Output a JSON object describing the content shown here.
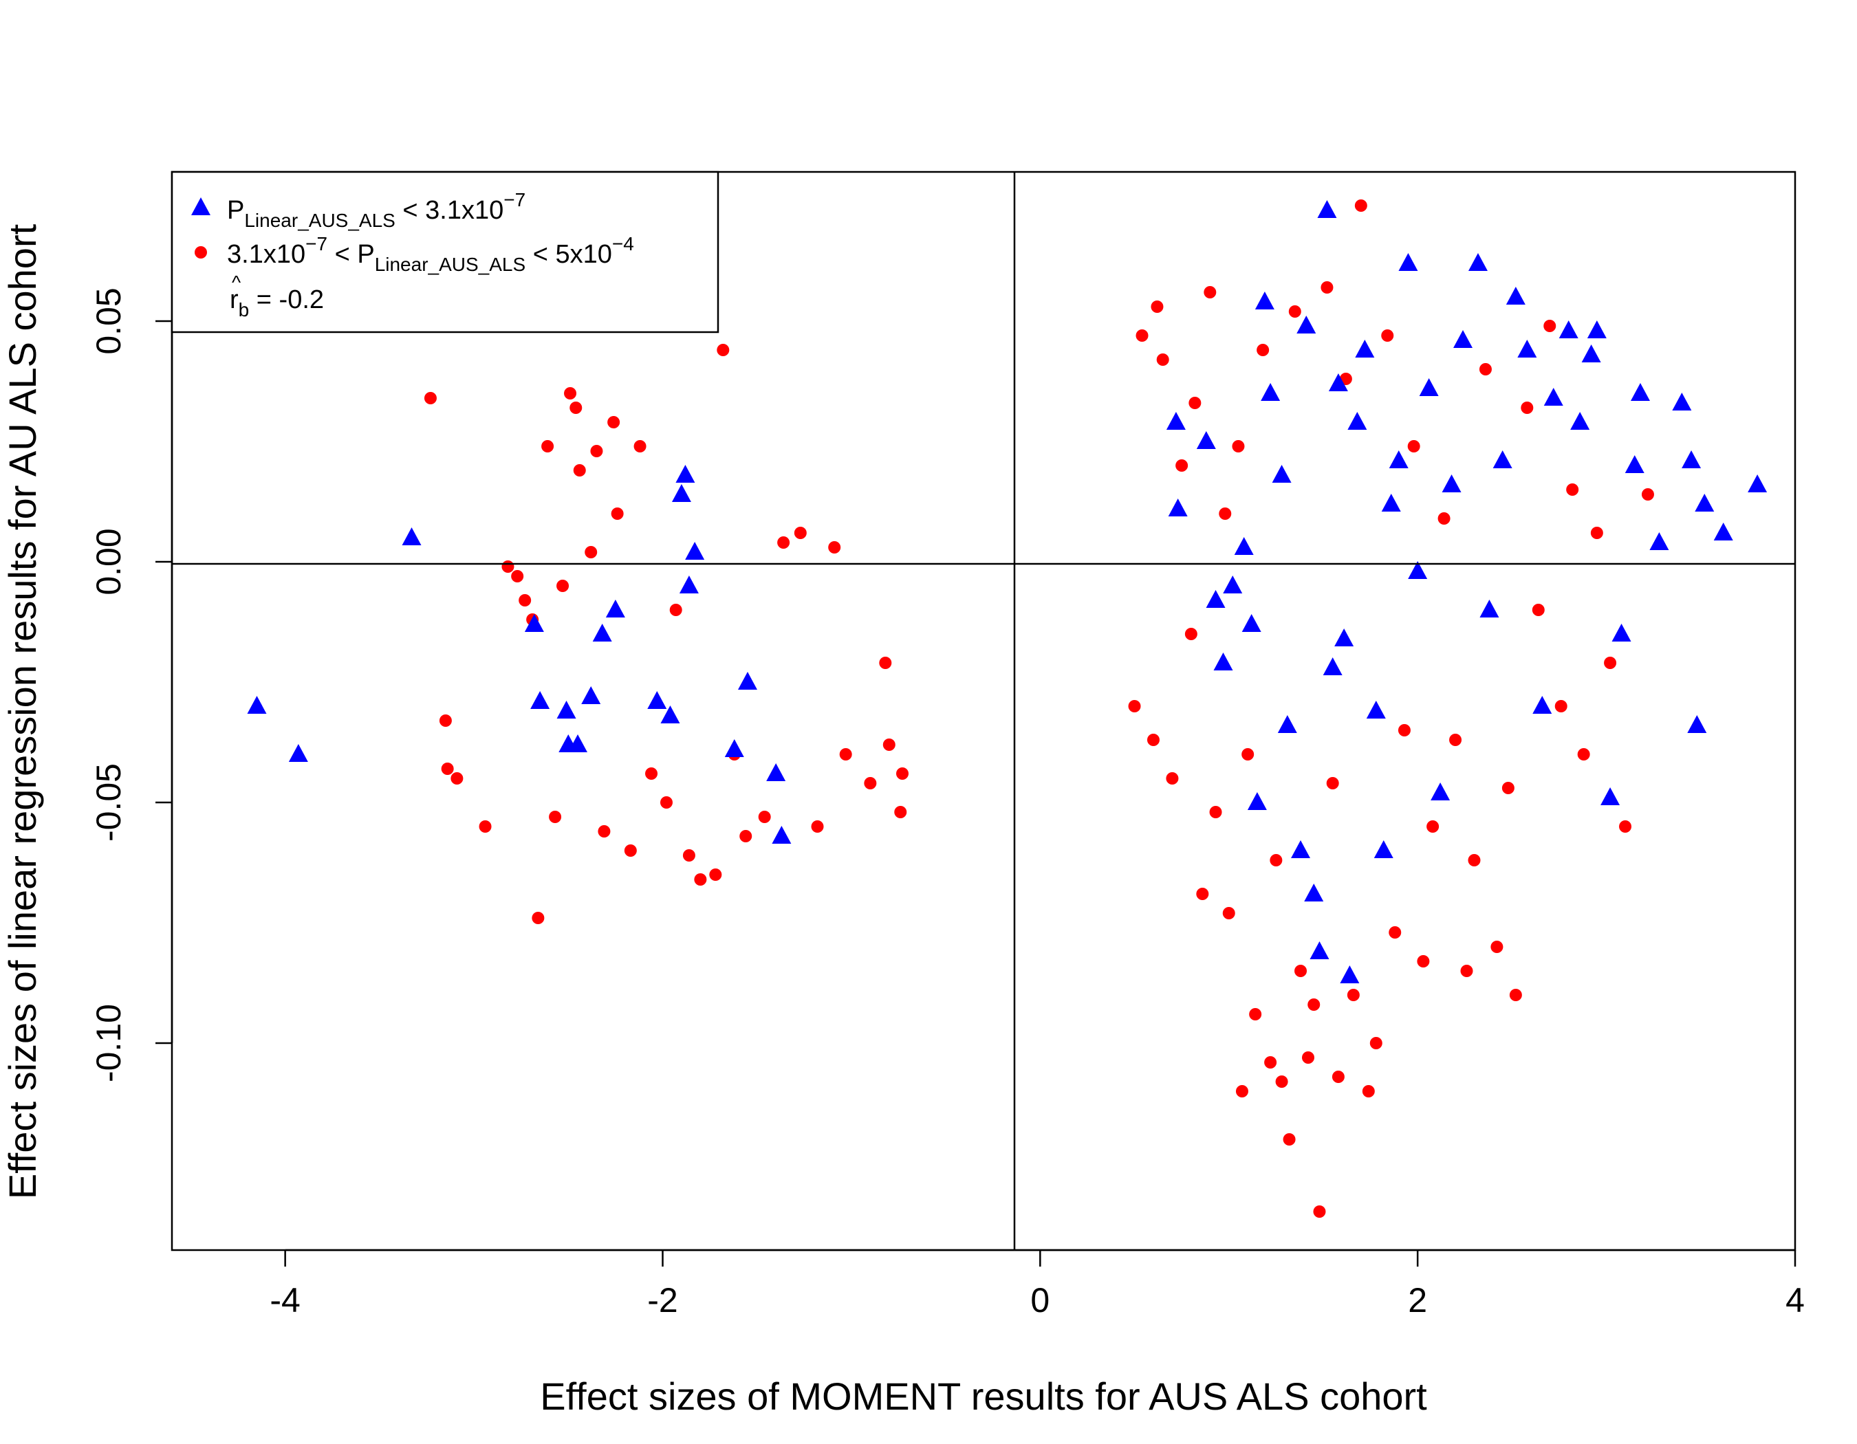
{
  "chart_data": {
    "type": "scatter",
    "title": "",
    "xlabel": "Effect sizes of MOMENT results for AUS ALS cohort",
    "ylabel": "Effect sizes of linear regression results for AU ALS cohort",
    "xlim": [
      -4.6,
      4.0
    ],
    "ylim": [
      -0.143,
      0.081
    ],
    "x_ticks": [
      -4,
      -2,
      0,
      2,
      4
    ],
    "y_ticks": [
      -0.1,
      -0.05,
      0.0,
      0.05
    ],
    "x_tick_labels": [
      "-4",
      "-2",
      "0",
      "2",
      "4"
    ],
    "y_tick_labels": [
      "-0.10",
      "-0.05",
      "0.00",
      "0.05"
    ],
    "reference_lines": {
      "x": 0,
      "y": 0
    },
    "grid": false,
    "legend_position": "top-left",
    "legend": {
      "blue_main": "P",
      "blue_sub": "Linear_AUS_ALS",
      "blue_tail": " < 3.1x10",
      "blue_exp": "−7",
      "red_head": "3.1x10",
      "red_head_exp": "−7",
      "red_mid": " < P",
      "red_sub": "Linear_AUS_ALS",
      "red_tail": " < 5x10",
      "red_tail_exp": "−4",
      "corr_label": "r",
      "corr_sub": "b",
      "corr_value": " = -0.2"
    },
    "series": [
      {
        "name": "P Linear_AUS_ALS < 3.1x10^-7",
        "marker": "triangle",
        "color": "#0000FF",
        "points": [
          [
            -4.15,
            -0.03
          ],
          [
            -3.93,
            -0.04
          ],
          [
            -3.33,
            0.005
          ],
          [
            -2.68,
            -0.013
          ],
          [
            -2.65,
            -0.029
          ],
          [
            -2.51,
            -0.031
          ],
          [
            -2.5,
            -0.038
          ],
          [
            -2.45,
            -0.038
          ],
          [
            -2.38,
            -0.028
          ],
          [
            -2.32,
            -0.015
          ],
          [
            -2.25,
            -0.01
          ],
          [
            -2.03,
            -0.029
          ],
          [
            -1.96,
            -0.032
          ],
          [
            -1.9,
            0.014
          ],
          [
            -1.88,
            0.018
          ],
          [
            -1.86,
            -0.005
          ],
          [
            -1.83,
            0.002
          ],
          [
            -1.62,
            -0.039
          ],
          [
            -1.55,
            -0.025
          ],
          [
            -1.4,
            -0.044
          ],
          [
            -1.37,
            -0.057
          ],
          [
            0.72,
            0.029
          ],
          [
            0.73,
            0.011
          ],
          [
            0.88,
            0.025
          ],
          [
            0.93,
            -0.008
          ],
          [
            0.97,
            -0.021
          ],
          [
            1.02,
            -0.005
          ],
          [
            1.08,
            0.003
          ],
          [
            1.12,
            -0.013
          ],
          [
            1.15,
            -0.05
          ],
          [
            1.19,
            0.054
          ],
          [
            1.22,
            0.035
          ],
          [
            1.28,
            0.018
          ],
          [
            1.31,
            -0.034
          ],
          [
            1.38,
            -0.06
          ],
          [
            1.41,
            0.049
          ],
          [
            1.45,
            -0.069
          ],
          [
            1.48,
            -0.081
          ],
          [
            1.52,
            0.073
          ],
          [
            1.55,
            -0.022
          ],
          [
            1.58,
            0.037
          ],
          [
            1.61,
            -0.016
          ],
          [
            1.64,
            -0.086
          ],
          [
            1.68,
            0.029
          ],
          [
            1.72,
            0.044
          ],
          [
            1.78,
            -0.031
          ],
          [
            1.82,
            -0.06
          ],
          [
            1.86,
            0.012
          ],
          [
            1.9,
            0.021
          ],
          [
            1.95,
            0.062
          ],
          [
            2.0,
            -0.002
          ],
          [
            2.06,
            0.036
          ],
          [
            2.12,
            -0.048
          ],
          [
            2.18,
            0.016
          ],
          [
            2.24,
            0.046
          ],
          [
            2.32,
            0.062
          ],
          [
            2.38,
            -0.01
          ],
          [
            2.45,
            0.021
          ],
          [
            2.52,
            0.055
          ],
          [
            2.58,
            0.044
          ],
          [
            2.66,
            -0.03
          ],
          [
            2.72,
            0.034
          ],
          [
            2.8,
            0.048
          ],
          [
            2.86,
            0.029
          ],
          [
            2.92,
            0.043
          ],
          [
            2.95,
            0.048
          ],
          [
            3.02,
            -0.049
          ],
          [
            3.08,
            -0.015
          ],
          [
            3.15,
            0.02
          ],
          [
            3.18,
            0.035
          ],
          [
            3.28,
            0.004
          ],
          [
            3.4,
            0.033
          ],
          [
            3.45,
            0.021
          ],
          [
            3.48,
            -0.034
          ],
          [
            3.52,
            0.012
          ],
          [
            3.62,
            0.006
          ],
          [
            3.8,
            0.016
          ]
        ]
      },
      {
        "name": "3.1x10^-7 < P Linear_AUS_ALS < 5x10^-4",
        "marker": "circle",
        "color": "#FF0000",
        "points": [
          [
            -3.23,
            0.034
          ],
          [
            -3.15,
            -0.033
          ],
          [
            -3.14,
            -0.043
          ],
          [
            -3.09,
            -0.045
          ],
          [
            -2.94,
            -0.055
          ],
          [
            -2.82,
            -0.001
          ],
          [
            -2.77,
            -0.003
          ],
          [
            -2.73,
            -0.008
          ],
          [
            -2.69,
            -0.012
          ],
          [
            -2.66,
            -0.074
          ],
          [
            -2.61,
            0.024
          ],
          [
            -2.57,
            -0.053
          ],
          [
            -2.53,
            -0.005
          ],
          [
            -2.49,
            0.035
          ],
          [
            -2.46,
            0.032
          ],
          [
            -2.44,
            0.019
          ],
          [
            -2.38,
            0.002
          ],
          [
            -2.35,
            0.023
          ],
          [
            -2.31,
            -0.056
          ],
          [
            -2.26,
            0.029
          ],
          [
            -2.24,
            0.01
          ],
          [
            -2.17,
            -0.06
          ],
          [
            -2.12,
            0.024
          ],
          [
            -2.06,
            -0.044
          ],
          [
            -1.98,
            -0.05
          ],
          [
            -1.93,
            -0.01
          ],
          [
            -1.86,
            -0.061
          ],
          [
            -1.8,
            -0.066
          ],
          [
            -1.72,
            -0.065
          ],
          [
            -1.68,
            0.044
          ],
          [
            -1.62,
            -0.04
          ],
          [
            -1.56,
            -0.057
          ],
          [
            -1.46,
            -0.053
          ],
          [
            -1.36,
            0.004
          ],
          [
            -1.27,
            0.006
          ],
          [
            -1.18,
            -0.055
          ],
          [
            -1.09,
            0.003
          ],
          [
            -1.03,
            -0.04
          ],
          [
            -0.9,
            -0.046
          ],
          [
            -0.82,
            -0.021
          ],
          [
            -0.8,
            -0.038
          ],
          [
            -0.74,
            -0.052
          ],
          [
            -0.73,
            -0.044
          ],
          [
            0.5,
            -0.03
          ],
          [
            0.54,
            0.047
          ],
          [
            0.6,
            -0.037
          ],
          [
            0.62,
            0.053
          ],
          [
            0.65,
            0.042
          ],
          [
            0.7,
            -0.045
          ],
          [
            0.75,
            0.02
          ],
          [
            0.8,
            -0.015
          ],
          [
            0.82,
            0.033
          ],
          [
            0.86,
            -0.069
          ],
          [
            0.9,
            0.056
          ],
          [
            0.93,
            -0.052
          ],
          [
            0.98,
            0.01
          ],
          [
            1.0,
            -0.073
          ],
          [
            1.05,
            0.024
          ],
          [
            1.07,
            -0.11
          ],
          [
            1.1,
            -0.04
          ],
          [
            1.14,
            -0.094
          ],
          [
            1.18,
            0.044
          ],
          [
            1.22,
            -0.104
          ],
          [
            1.25,
            -0.062
          ],
          [
            1.28,
            -0.108
          ],
          [
            1.32,
            -0.12
          ],
          [
            1.35,
            0.052
          ],
          [
            1.38,
            -0.085
          ],
          [
            1.42,
            -0.103
          ],
          [
            1.45,
            -0.092
          ],
          [
            1.48,
            -0.135
          ],
          [
            1.52,
            0.057
          ],
          [
            1.55,
            -0.046
          ],
          [
            1.58,
            -0.107
          ],
          [
            1.62,
            0.038
          ],
          [
            1.66,
            -0.09
          ],
          [
            1.7,
            0.074
          ],
          [
            1.74,
            -0.11
          ],
          [
            1.78,
            -0.1
          ],
          [
            1.84,
            0.047
          ],
          [
            1.88,
            -0.077
          ],
          [
            1.93,
            -0.035
          ],
          [
            1.98,
            0.024
          ],
          [
            2.03,
            -0.083
          ],
          [
            2.08,
            -0.055
          ],
          [
            2.14,
            0.009
          ],
          [
            2.2,
            -0.037
          ],
          [
            2.26,
            -0.085
          ],
          [
            2.3,
            -0.062
          ],
          [
            2.36,
            0.04
          ],
          [
            2.42,
            -0.08
          ],
          [
            2.48,
            -0.047
          ],
          [
            2.52,
            -0.09
          ],
          [
            2.58,
            0.032
          ],
          [
            2.64,
            -0.01
          ],
          [
            2.7,
            0.049
          ],
          [
            2.76,
            -0.03
          ],
          [
            2.82,
            0.015
          ],
          [
            2.88,
            -0.04
          ],
          [
            2.95,
            0.006
          ],
          [
            3.02,
            -0.021
          ],
          [
            3.1,
            -0.055
          ],
          [
            3.22,
            0.014
          ]
        ]
      }
    ]
  }
}
